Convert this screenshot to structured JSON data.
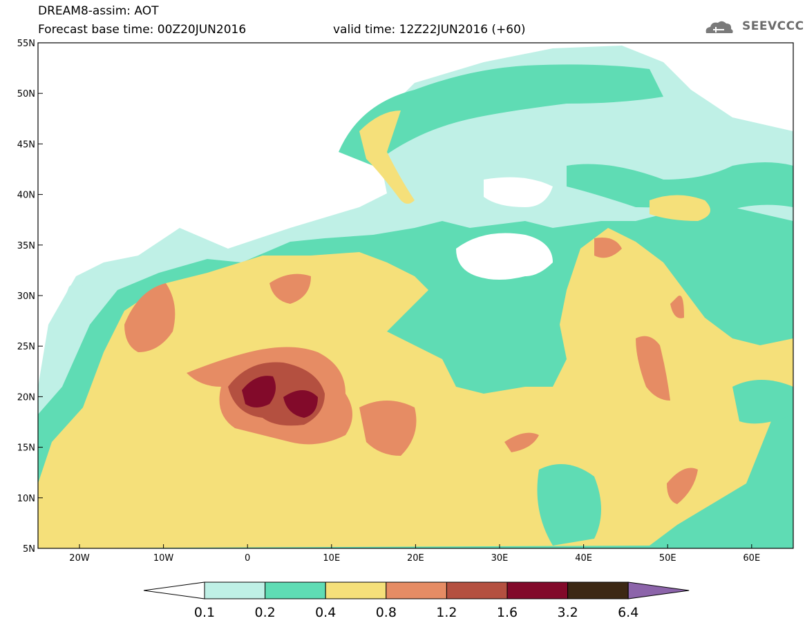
{
  "header": {
    "title": "DREAM8-assim: AOT",
    "base_time": "Forecast base time: 00Z20JUN2016",
    "valid_time": "valid time: 12Z22JUN2016 (+60)",
    "logo_text": "SEEVCCC"
  },
  "axes": {
    "lat_labels": [
      "55N",
      "50N",
      "45N",
      "40N",
      "35N",
      "30N",
      "25N",
      "20N",
      "15N",
      "10N",
      "5N"
    ],
    "lon_labels": [
      "20W",
      "10W",
      "0",
      "10E",
      "20E",
      "30E",
      "40E",
      "50E",
      "60E"
    ]
  },
  "colorbar": {
    "labels": [
      "0.1",
      "0.2",
      "0.4",
      "0.8",
      "1.2",
      "1.6",
      "3.2",
      "6.4"
    ],
    "colors": [
      "#bff0e6",
      "#5fdcb4",
      "#f5e07a",
      "#e68c64",
      "#b45040",
      "#820a2a",
      "#3c2814",
      "#8c64aa"
    ]
  },
  "colors": {
    "c1": "#bff0e6",
    "c2": "#5fdcb4",
    "c3": "#f5e07a",
    "c4": "#e68c64",
    "c5": "#b45040",
    "c6": "#820a2a"
  }
}
